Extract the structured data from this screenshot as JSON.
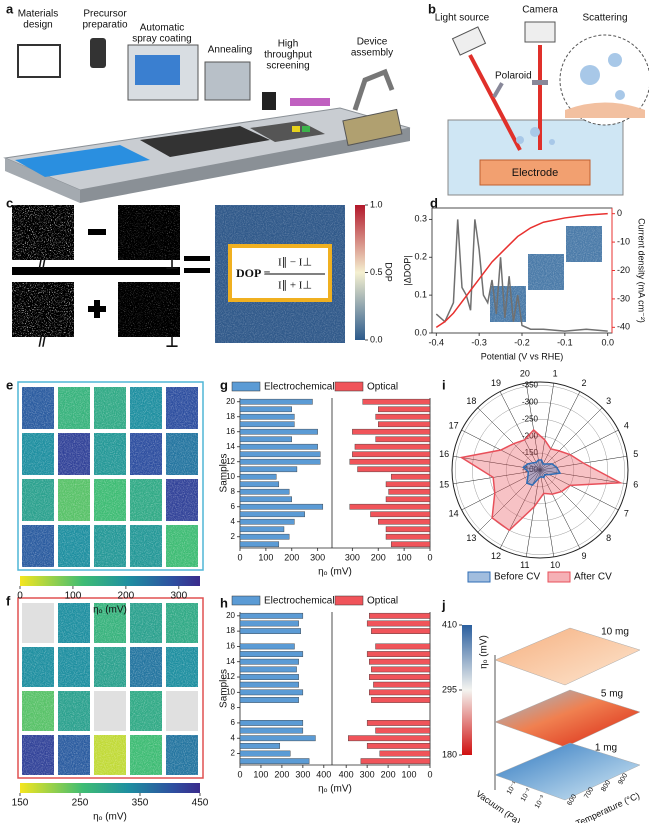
{
  "panel_labels": [
    "a",
    "b",
    "c",
    "d",
    "e",
    "f",
    "g",
    "h",
    "i",
    "j"
  ],
  "a": {
    "steps": [
      [
        "Materials",
        "design"
      ],
      [
        "Precursor",
        "preparatio"
      ],
      [
        "Automatic",
        "spray coating"
      ],
      [
        "Annealing"
      ],
      [
        "High",
        "throughput",
        "screening"
      ],
      [
        "Device",
        "assembly"
      ]
    ]
  },
  "b": {
    "light_source": "Light source",
    "camera": "Camera",
    "scattering": "Scattering",
    "polaroid": "Polaroid",
    "electrode": "Electrode"
  },
  "c": {
    "parallel": "//",
    "perpendicular": "⊥",
    "formula_lhs": "DOP =",
    "numerator": "I∥ − I⊥",
    "denominator": "I∥ + I⊥",
    "colorbar_label": "DOP",
    "colorbar_lim": [
      0,
      1
    ],
    "colorbar_ticks": [
      {
        "value": 1,
        "label": "1.0"
      },
      {
        "value": 0.5,
        "label": "0.5"
      },
      {
        "value": 0,
        "label": "0.0"
      }
    ]
  },
  "d": {
    "type": "line",
    "xlabel": "Potential (V vs RHE)",
    "ylabel": "|ΔDOP|",
    "y2label": "Current density (mA cm⁻²)",
    "xlim": [
      -0.41,
      0.01
    ],
    "xticks": [
      {
        "value": -0.4,
        "label": "-0.4"
      },
      -0.3,
      -0.2,
      -0.1,
      {
        "value": 0,
        "label": "0.0"
      }
    ],
    "ylim": [
      0,
      0.33
    ],
    "yticks": [
      {
        "value": 0,
        "label": "0.0"
      },
      0.1,
      0.2,
      0.3
    ],
    "y2lim": [
      -42,
      2
    ],
    "y2ticks": [
      0,
      -10,
      -20,
      -30,
      -40
    ],
    "x": [
      -0.4,
      -0.38,
      -0.36,
      -0.35,
      -0.34,
      -0.33,
      -0.32,
      -0.31,
      -0.3,
      -0.29,
      -0.28,
      -0.27,
      -0.26,
      -0.25,
      -0.24,
      -0.23,
      -0.22,
      -0.21,
      -0.2,
      -0.18,
      -0.15,
      -0.1,
      -0.05,
      0
    ],
    "series": [
      {
        "color": "#707070",
        "values": [
          0.05,
          0.03,
          0.08,
          0.3,
          0.12,
          0.1,
          0.06,
          0.3,
          0.22,
          0.1,
          0.08,
          0.14,
          0.05,
          0.2,
          0.04,
          0.15,
          0.03,
          0.1,
          0.02,
          0.01,
          0.01,
          0.005,
          0.01,
          0.005
        ]
      },
      {
        "color": "#e8312f",
        "axis": "y2",
        "values": [
          -40,
          -38,
          -35,
          -33,
          -31,
          -29,
          -27,
          -25,
          -23,
          -21,
          -19,
          -17,
          -15.5,
          -14,
          -12.5,
          -11,
          -9.5,
          -8,
          -7,
          -5,
          -3,
          -1.5,
          -0.5,
          0
        ]
      }
    ]
  },
  "e": {
    "colorbar_lim": [
      0,
      340
    ],
    "colorbar_ticks": [
      0,
      100,
      200,
      300
    ],
    "colorbar_label": "ηₒ (mV)"
  },
  "f": {
    "colorbar_lim": [
      150,
      450
    ],
    "colorbar_ticks": [
      150,
      250,
      350,
      450
    ],
    "colorbar_label": "ηₒ (mV)"
  },
  "g": {
    "type": "bar",
    "xlabel": "ηₒ (mV)",
    "ylabel": "Samples",
    "samples": [
      1,
      2,
      3,
      4,
      5,
      6,
      7,
      8,
      9,
      10,
      11,
      12,
      13,
      14,
      15,
      16,
      17,
      18,
      19,
      20
    ],
    "ylim": [
      0.5,
      20.5
    ],
    "yticks": [
      2,
      4,
      6,
      8,
      10,
      12,
      14,
      16,
      18,
      20
    ],
    "xlim": [
      0,
      340
    ],
    "xticks": [
      0,
      100,
      200,
      300
    ],
    "series": [
      {
        "name": "Electrochemical",
        "color": "#5b9bd5",
        "values": [
          150,
          190,
          170,
          210,
          250,
          320,
          200,
          190,
          150,
          140,
          220,
          310,
          310,
          300,
          200,
          300,
          210,
          210,
          200,
          280
        ]
      },
      {
        "name": "Optical",
        "color": "#f0545a",
        "values": [
          150,
          170,
          170,
          200,
          230,
          310,
          170,
          160,
          170,
          150,
          280,
          310,
          300,
          290,
          210,
          300,
          200,
          210,
          200,
          260
        ]
      }
    ]
  },
  "h": {
    "type": "bar",
    "xlabel": "ηₒ (mV)",
    "ylabel": "Samples",
    "samples": [
      1,
      2,
      3,
      4,
      5,
      6,
      7,
      8,
      9,
      10,
      11,
      12,
      13,
      14,
      15,
      16,
      17,
      18,
      19,
      20
    ],
    "ylim": [
      0.5,
      20.5
    ],
    "yticks": [
      2,
      4,
      6,
      8,
      10,
      12,
      14,
      16,
      18,
      20
    ],
    "xlim": [
      0,
      420
    ],
    "xticks": [
      0,
      100,
      200,
      300,
      400
    ],
    "series": [
      {
        "name": "Electrochemical",
        "color": "#5b9bd5",
        "values": [
          330,
          240,
          190,
          360,
          300,
          300,
          null,
          null,
          280,
          300,
          280,
          280,
          270,
          280,
          300,
          260,
          null,
          290,
          280,
          300
        ]
      },
      {
        "name": "Optical",
        "color": "#f0545a",
        "values": [
          330,
          240,
          300,
          390,
          260,
          300,
          null,
          null,
          280,
          290,
          270,
          290,
          280,
          290,
          300,
          260,
          null,
          280,
          300,
          290
        ]
      }
    ]
  },
  "i": {
    "type": "radar",
    "categories": [
      "1",
      "2",
      "3",
      "4",
      "5",
      "6",
      "7",
      "8",
      "9",
      "10",
      "11",
      "12",
      "13",
      "14",
      "15",
      "16",
      "17",
      "18",
      "19",
      "20"
    ],
    "rlim": [
      -100,
      -360
    ],
    "rticks": [
      -350,
      -300,
      -250,
      -200,
      -150,
      -100
    ],
    "series": [
      {
        "name": "Before CV",
        "color": "#2f6db5",
        "values": [
          -130,
          -120,
          -125,
          -140,
          -150,
          -160,
          -130,
          -120,
          -125,
          -120,
          -125,
          -150,
          -155,
          -140,
          -135,
          -150,
          -140,
          -130,
          -125,
          -130
        ]
      },
      {
        "name": "After CV",
        "color": "#e8505a",
        "values": [
          -190,
          -170,
          -180,
          -200,
          -230,
          -340,
          -200,
          -190,
          -180,
          -170,
          -210,
          -300,
          -300,
          -250,
          -240,
          -335,
          -230,
          -210,
          -200,
          -220
        ]
      }
    ]
  },
  "j": {
    "layers": [
      "10 mg",
      "5 mg",
      "1 mg"
    ],
    "colorbar_lim": [
      180,
      410
    ],
    "colorbar_ticks": [
      410,
      295,
      180
    ],
    "colorbar_label": "ηₒ (mV)",
    "xlabel": "Vacuum (Pa)",
    "ylabel": "Temperature (°C)",
    "vacuum_ticks": [
      "10⁻¹",
      "10⁻²",
      "10⁻³"
    ],
    "temperature_ticks": [
      600,
      700,
      800,
      900
    ]
  }
}
